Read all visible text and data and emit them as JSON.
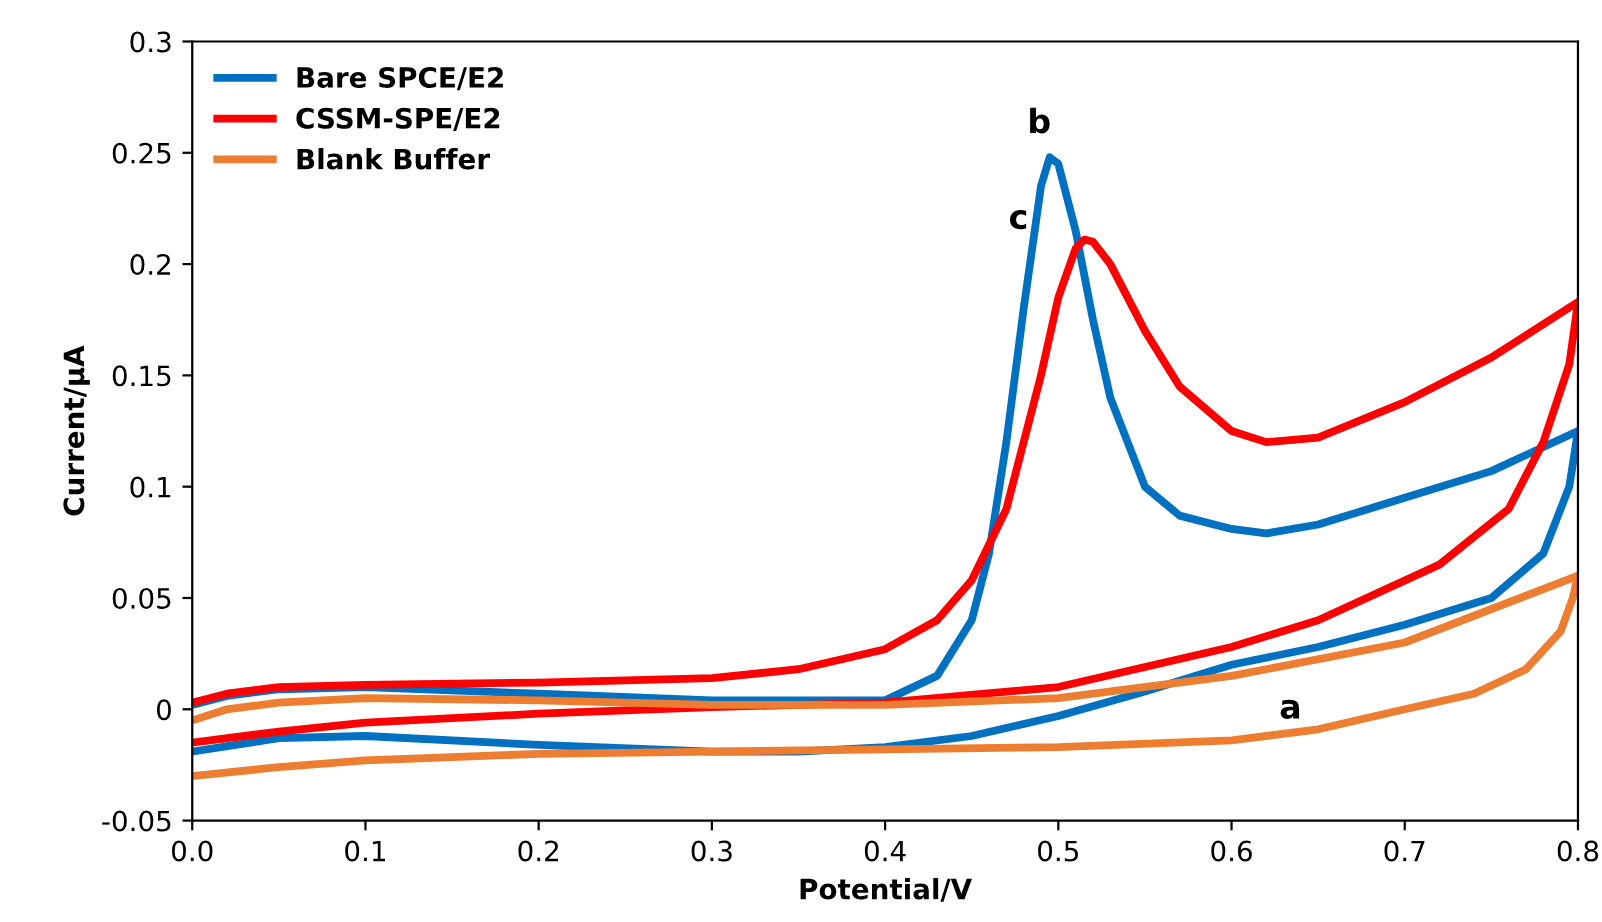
{
  "chart_data": {
    "type": "line",
    "xlabel": "Potential/V",
    "ylabel": "Current/μA",
    "xlim": [
      0,
      0.8
    ],
    "ylim": [
      -0.05,
      0.3
    ],
    "xticks": [
      {
        "value": 0,
        "label": "0.0"
      },
      0.1,
      0.2,
      0.3,
      0.4,
      0.5,
      0.6,
      0.7,
      0.8
    ],
    "yticks": [
      -0.05,
      0,
      0.05,
      0.1,
      0.15,
      0.2,
      0.25,
      0.3
    ],
    "grid": false,
    "legend": "top left",
    "marker": "none",
    "line_style": "solid",
    "series": [
      {
        "name": "Bare SPCE/E2",
        "color": "#0070c0",
        "x": [
          0,
          0.02,
          0.05,
          0.1,
          0.2,
          0.3,
          0.4,
          0.43,
          0.45,
          0.46,
          0.47,
          0.48,
          0.49,
          0.495,
          0.5,
          0.51,
          0.52,
          0.53,
          0.55,
          0.57,
          0.6,
          0.62,
          0.65,
          0.7,
          0.75,
          0.8,
          0.795,
          0.78,
          0.75,
          0.7,
          0.65,
          0.6,
          0.55,
          0.5,
          0.45,
          0.4,
          0.35,
          0.3,
          0.2,
          0.1,
          0.05,
          0
        ],
        "values": [
          0.002,
          0.006,
          0.009,
          0.01,
          0.007,
          0.004,
          0.004,
          0.015,
          0.04,
          0.07,
          0.12,
          0.18,
          0.235,
          0.248,
          0.245,
          0.215,
          0.175,
          0.14,
          0.1,
          0.087,
          0.081,
          0.079,
          0.083,
          0.095,
          0.107,
          0.125,
          0.1,
          0.07,
          0.05,
          0.038,
          0.028,
          0.02,
          0.008,
          -0.003,
          -0.012,
          -0.017,
          -0.019,
          -0.019,
          -0.016,
          -0.012,
          -0.013,
          -0.019
        ]
      },
      {
        "name": "CSSM-SPE/E2",
        "color": "#ff0000",
        "x": [
          0,
          0.02,
          0.05,
          0.1,
          0.2,
          0.3,
          0.35,
          0.4,
          0.43,
          0.45,
          0.47,
          0.49,
          0.5,
          0.51,
          0.515,
          0.52,
          0.53,
          0.55,
          0.57,
          0.6,
          0.62,
          0.65,
          0.7,
          0.75,
          0.8,
          0.795,
          0.78,
          0.76,
          0.72,
          0.65,
          0.6,
          0.5,
          0.4,
          0.3,
          0.2,
          0.1,
          0.05,
          0
        ],
        "values": [
          0.003,
          0.007,
          0.01,
          0.011,
          0.012,
          0.014,
          0.018,
          0.027,
          0.04,
          0.058,
          0.09,
          0.15,
          0.185,
          0.207,
          0.211,
          0.21,
          0.2,
          0.17,
          0.145,
          0.125,
          0.12,
          0.122,
          0.138,
          0.158,
          0.183,
          0.155,
          0.12,
          0.09,
          0.065,
          0.04,
          0.028,
          0.01,
          0.003,
          0.001,
          -0.002,
          -0.006,
          -0.01,
          -0.015
        ]
      },
      {
        "name": "Blank Buffer",
        "color": "#ed7d31",
        "x": [
          0,
          0.02,
          0.05,
          0.1,
          0.2,
          0.3,
          0.4,
          0.5,
          0.6,
          0.7,
          0.8,
          0.797,
          0.79,
          0.77,
          0.74,
          0.7,
          0.65,
          0.6,
          0.5,
          0.4,
          0.3,
          0.2,
          0.1,
          0.05,
          0
        ],
        "values": [
          -0.005,
          0.0,
          0.003,
          0.005,
          0.004,
          0.002,
          0.002,
          0.005,
          0.015,
          0.03,
          0.06,
          0.05,
          0.035,
          0.018,
          0.007,
          0.0,
          -0.009,
          -0.014,
          -0.017,
          -0.018,
          -0.019,
          -0.02,
          -0.023,
          -0.026,
          -0.03
        ]
      }
    ],
    "annotations": [
      "b",
      "c",
      "a"
    ]
  }
}
